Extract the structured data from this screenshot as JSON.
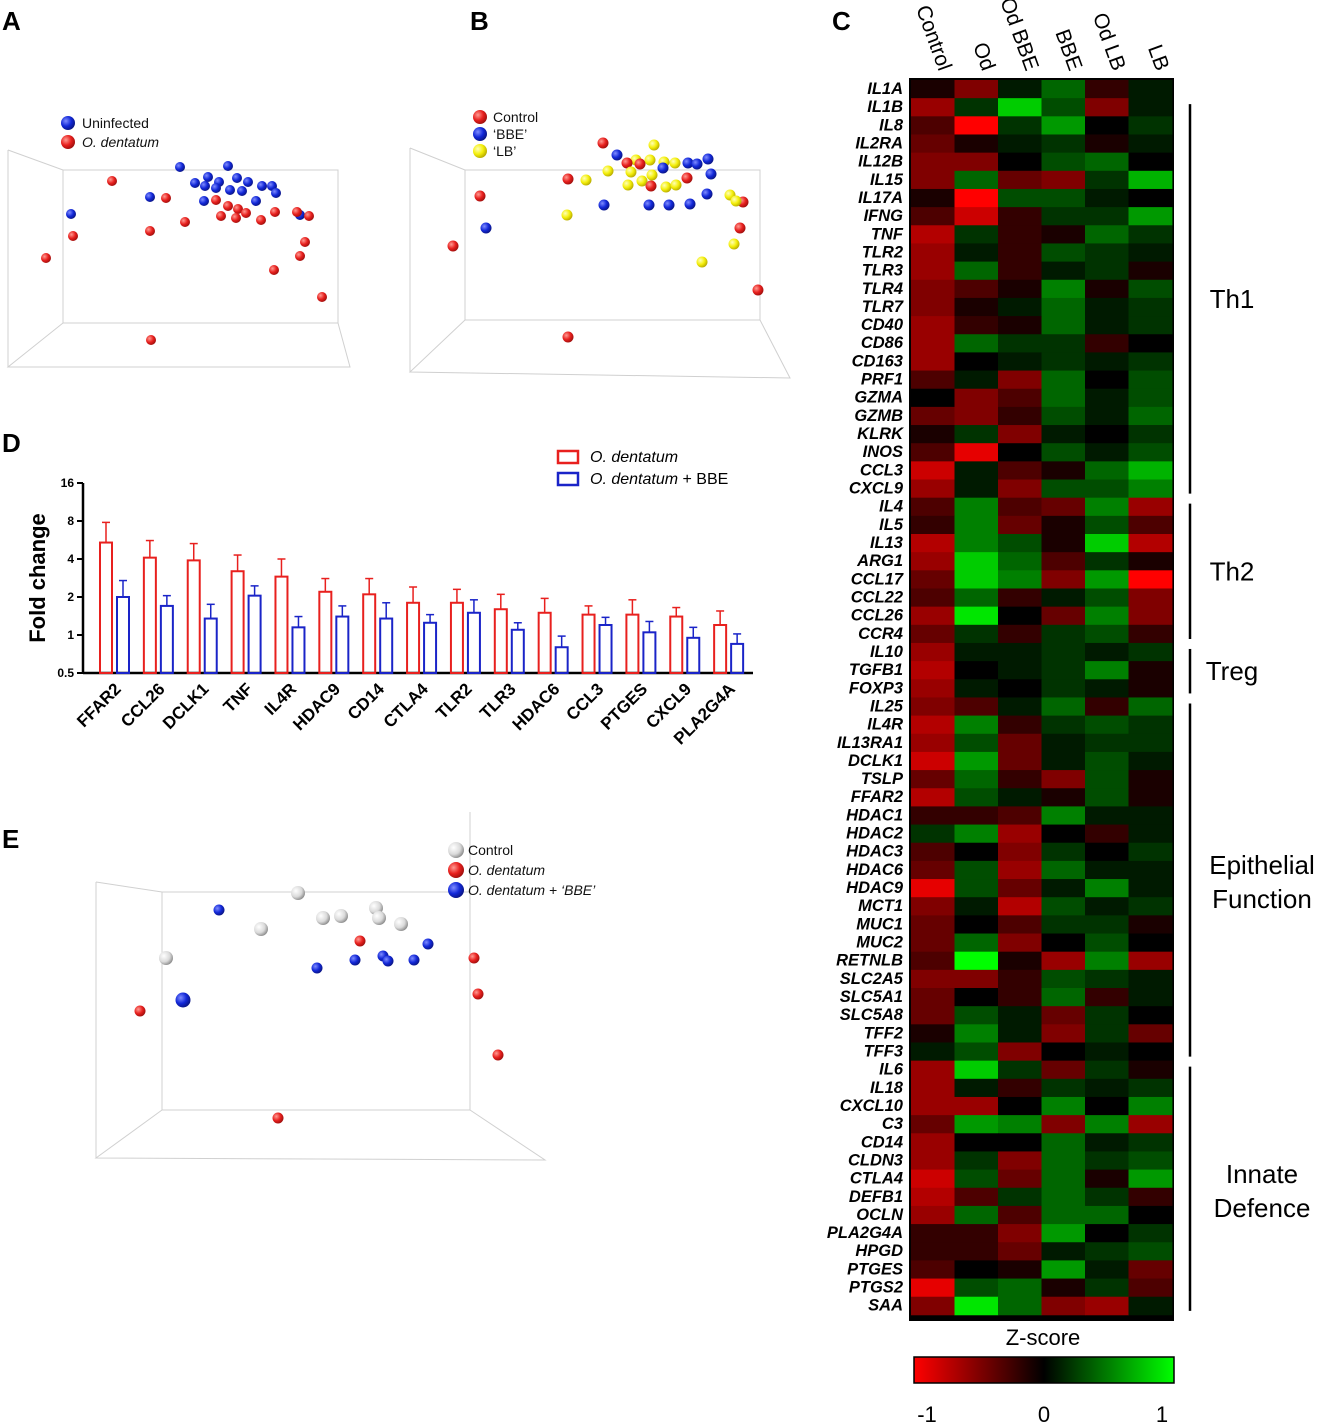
{
  "panels": {
    "a": "A",
    "b": "B",
    "c": "C",
    "d": "D",
    "e": "E"
  },
  "colors": {
    "red": "#e8201e",
    "blue": "#1228d8",
    "yellow": "#f4ef0a",
    "grey": "#d6d6d6",
    "barRed": "#e8201e",
    "barBlue": "#1a24c8"
  },
  "chart_data": [
    {
      "panel": "A",
      "type": "scatter",
      "title": "",
      "legend": [
        {
          "label": "Uninfected",
          "color": "#1228d8"
        },
        {
          "label": "O. dentatum",
          "color": "#e8201e"
        }
      ],
      "note": "3D PCA-style scatter; points plotted in a projected view with axes unlabeled"
    },
    {
      "panel": "B",
      "type": "scatter",
      "legend": [
        {
          "label": "Control",
          "color": "#e8201e"
        },
        {
          "label": "‘BBE’",
          "color": "#1228d8"
        },
        {
          "label": "‘LB’",
          "color": "#f4ef0a"
        }
      ]
    },
    {
      "panel": "C",
      "type": "heatmap",
      "columns": [
        "Control",
        "Od",
        "Od BBE",
        "BBE",
        "Od LB",
        "LB"
      ],
      "rows": [
        "IL1A",
        "IL1B",
        "IL8",
        "IL2RA",
        "IL12B",
        "IL15",
        "IL17A",
        "IFNG",
        "TNF",
        "TLR2",
        "TLR3",
        "TLR4",
        "TLR7",
        "CD40",
        "CD86",
        "CD163",
        "PRF1",
        "GZMA",
        "GZMB",
        "KLRK",
        "INOS",
        "CCL3",
        "CXCL9",
        "IL4",
        "IL5",
        "IL13",
        "ARG1",
        "CCL17",
        "CCL22",
        "CCL26",
        "CCR4",
        "IL10",
        "TGFB1",
        "FOXP3",
        "IL25",
        "IL4R",
        "IL13RA1",
        "DCLK1",
        "TSLP",
        "FFAR2",
        "HDAC1",
        "HDAC2",
        "HDAC3",
        "HDAC6",
        "HDAC9",
        "MCT1",
        "MUC1",
        "MUC2",
        "RETNLB",
        "SLC2A5",
        "SLC5A1",
        "SLC5A8",
        "TFF2",
        "TFF3",
        "IL6",
        "IL18",
        "CXCL10",
        "C3",
        "CD14",
        "CLDN3",
        "CTLA4",
        "DEFB1",
        "OCLN",
        "PLA2G4A",
        "HPGD",
        "PTGES",
        "PTGS2",
        "SAA"
      ],
      "groups": [
        {
          "label": "Th1",
          "from": "IL1B",
          "to": "CXCL9"
        },
        {
          "label": "Th2",
          "from": "IL4",
          "to": "CCR4"
        },
        {
          "label": "Treg",
          "from": "IL10",
          "to": "FOXP3"
        },
        {
          "label": "Epithelial",
          "label2": "Function",
          "from": "IL25",
          "to": "TFF3"
        },
        {
          "label": "Innate",
          "label2": "Defence",
          "from": "IL6",
          "to": "SAA"
        }
      ],
      "values": [
        [
          -0.1,
          -0.5,
          0.1,
          0.4,
          -0.2,
          0.1
        ],
        [
          -0.6,
          0.2,
          0.8,
          0.3,
          -0.5,
          0.1
        ],
        [
          -0.3,
          -1.0,
          0.2,
          0.6,
          0.0,
          0.2
        ],
        [
          -0.4,
          -0.1,
          0.1,
          0.2,
          -0.1,
          0.1
        ],
        [
          -0.5,
          -0.5,
          0.0,
          0.3,
          0.4,
          0.0
        ],
        [
          -0.5,
          0.4,
          -0.4,
          -0.5,
          0.2,
          0.7
        ],
        [
          -0.1,
          -1.0,
          0.3,
          0.3,
          0.1,
          0.0
        ],
        [
          -0.3,
          -0.8,
          -0.2,
          0.2,
          0.2,
          0.6
        ],
        [
          -0.7,
          0.2,
          -0.2,
          -0.1,
          0.4,
          0.2
        ],
        [
          -0.6,
          0.1,
          -0.2,
          0.3,
          0.2,
          0.1
        ],
        [
          -0.6,
          0.4,
          -0.2,
          0.1,
          0.2,
          -0.1
        ],
        [
          -0.5,
          -0.3,
          -0.1,
          0.5,
          -0.1,
          0.3
        ],
        [
          -0.5,
          -0.1,
          0.1,
          0.4,
          0.1,
          0.2
        ],
        [
          -0.6,
          -0.2,
          -0.1,
          0.4,
          0.1,
          0.2
        ],
        [
          -0.6,
          0.4,
          0.2,
          0.2,
          -0.2,
          0.0
        ],
        [
          -0.6,
          0.0,
          0.1,
          0.2,
          0.1,
          0.2
        ],
        [
          -0.3,
          0.1,
          -0.5,
          0.4,
          0.0,
          0.3
        ],
        [
          0.0,
          -0.5,
          -0.3,
          0.4,
          0.1,
          0.3
        ],
        [
          -0.4,
          -0.5,
          -0.2,
          0.3,
          0.1,
          0.4
        ],
        [
          -0.1,
          0.2,
          -0.5,
          0.1,
          0.0,
          0.2
        ],
        [
          -0.3,
          -0.9,
          0.0,
          0.3,
          0.1,
          0.3
        ],
        [
          -0.8,
          0.1,
          -0.3,
          -0.1,
          0.4,
          0.7
        ],
        [
          -0.6,
          0.1,
          -0.5,
          0.3,
          0.3,
          0.5
        ],
        [
          -0.3,
          0.5,
          -0.3,
          -0.4,
          0.5,
          -0.6
        ],
        [
          -0.2,
          0.5,
          -0.4,
          -0.1,
          0.3,
          -0.3
        ],
        [
          -0.7,
          0.5,
          0.3,
          -0.1,
          0.8,
          -0.7
        ],
        [
          -0.6,
          0.8,
          0.4,
          -0.3,
          0.2,
          -0.1
        ],
        [
          -0.4,
          0.8,
          0.5,
          -0.5,
          0.6,
          -1.0
        ],
        [
          -0.3,
          0.4,
          -0.2,
          0.1,
          0.3,
          -0.5
        ],
        [
          -0.6,
          0.9,
          0.0,
          -0.4,
          0.5,
          -0.5
        ],
        [
          -0.4,
          0.2,
          -0.2,
          0.2,
          0.3,
          -0.2
        ],
        [
          -0.6,
          0.1,
          0.1,
          0.2,
          0.1,
          0.2
        ],
        [
          -0.7,
          0.0,
          0.1,
          0.2,
          0.5,
          -0.1
        ],
        [
          -0.6,
          0.1,
          0.0,
          0.2,
          0.1,
          -0.1
        ],
        [
          -0.5,
          -0.3,
          0.1,
          0.4,
          -0.2,
          0.4
        ],
        [
          -0.7,
          0.5,
          -0.2,
          0.2,
          0.3,
          0.2
        ],
        [
          -0.6,
          0.3,
          -0.4,
          0.1,
          0.2,
          0.2
        ],
        [
          -0.8,
          0.6,
          -0.4,
          0.1,
          0.3,
          0.1
        ],
        [
          -0.4,
          0.4,
          -0.2,
          -0.5,
          0.3,
          -0.1
        ],
        [
          -0.7,
          0.3,
          0.1,
          -0.1,
          0.3,
          -0.1
        ],
        [
          -0.2,
          -0.2,
          -0.3,
          0.5,
          0.1,
          0.1
        ],
        [
          0.2,
          0.5,
          -0.6,
          0.0,
          -0.2,
          0.1
        ],
        [
          -0.3,
          0.0,
          -0.5,
          0.2,
          0.0,
          0.2
        ],
        [
          -0.4,
          0.3,
          -0.6,
          0.4,
          0.1,
          0.1
        ],
        [
          -0.9,
          0.3,
          -0.4,
          0.1,
          0.5,
          0.1
        ],
        [
          -0.5,
          0.1,
          -0.7,
          0.3,
          0.1,
          0.2
        ],
        [
          -0.4,
          0.0,
          -0.3,
          0.2,
          0.2,
          -0.1
        ],
        [
          -0.4,
          0.4,
          -0.5,
          0.0,
          0.3,
          0.0
        ],
        [
          -0.3,
          1.0,
          -0.1,
          -0.6,
          0.5,
          -0.6
        ],
        [
          -0.5,
          -0.5,
          -0.2,
          0.3,
          0.2,
          0.1
        ],
        [
          -0.4,
          0.0,
          -0.2,
          0.4,
          -0.2,
          0.1
        ],
        [
          -0.4,
          0.3,
          0.1,
          -0.4,
          0.2,
          0.0
        ],
        [
          -0.1,
          0.5,
          0.1,
          -0.5,
          0.2,
          -0.4
        ],
        [
          0.1,
          0.3,
          -0.5,
          0.0,
          0.1,
          0.0
        ],
        [
          -0.6,
          0.8,
          0.2,
          -0.4,
          0.2,
          -0.1
        ],
        [
          -0.6,
          0.1,
          -0.2,
          0.2,
          0.1,
          0.2
        ],
        [
          -0.6,
          -0.6,
          0.0,
          0.5,
          0.0,
          0.5
        ],
        [
          -0.4,
          0.6,
          0.5,
          -0.5,
          0.5,
          -0.6
        ],
        [
          -0.6,
          0.0,
          0.0,
          0.4,
          0.1,
          0.2
        ],
        [
          -0.6,
          0.2,
          -0.5,
          0.4,
          0.2,
          0.3
        ],
        [
          -0.8,
          0.3,
          -0.4,
          0.4,
          -0.1,
          0.6
        ],
        [
          -0.7,
          -0.3,
          0.2,
          0.4,
          0.2,
          -0.2
        ],
        [
          -0.6,
          0.4,
          -0.3,
          0.4,
          0.4,
          0.0
        ],
        [
          -0.2,
          -0.2,
          -0.5,
          0.6,
          0.0,
          0.2
        ],
        [
          -0.2,
          -0.2,
          -0.4,
          0.1,
          0.2,
          0.3
        ],
        [
          -0.3,
          0.0,
          -0.1,
          0.6,
          0.1,
          -0.4
        ],
        [
          -0.9,
          0.3,
          0.4,
          -0.1,
          0.2,
          -0.3
        ],
        [
          -0.5,
          0.9,
          0.4,
          -0.5,
          -0.6,
          0.1
        ]
      ],
      "colorbar": {
        "label": "Z-score",
        "min": "-1",
        "mid": "0",
        "max": "1"
      }
    },
    {
      "panel": "D",
      "type": "bar",
      "ylabel": "Fold change",
      "yscale": "log2",
      "ylim": [
        0.5,
        16
      ],
      "yticks": [
        "0.5",
        "1",
        "2",
        "4",
        "8",
        "16"
      ],
      "categories": [
        "FFAR2",
        "CCL26",
        "DCLK1",
        "TNF",
        "IL4R",
        "HDAC9",
        "CD14",
        "CTLA4",
        "TLR2",
        "TLR3",
        "HDAC6",
        "CCL3",
        "PTGES",
        "CXCL9",
        "PLA2G4A"
      ],
      "series": [
        {
          "name": "O. dentatum",
          "color": "#e8201e",
          "values": [
            5.4,
            4.1,
            3.9,
            3.2,
            2.9,
            2.2,
            2.1,
            1.8,
            1.8,
            1.6,
            1.5,
            1.45,
            1.45,
            1.4,
            1.2
          ],
          "errors": [
            7.8,
            5.6,
            5.3,
            4.3,
            4.0,
            2.8,
            2.8,
            2.4,
            2.3,
            2.1,
            1.95,
            1.7,
            1.9,
            1.65,
            1.55
          ]
        },
        {
          "name": "O. dentatum + BBE",
          "color": "#1a24c8",
          "values": [
            2.0,
            1.7,
            1.35,
            2.05,
            1.15,
            1.4,
            1.35,
            1.25,
            1.5,
            1.1,
            0.8,
            1.2,
            1.05,
            0.95,
            0.85
          ],
          "errors": [
            2.7,
            2.05,
            1.75,
            2.45,
            1.4,
            1.7,
            1.8,
            1.45,
            1.9,
            1.25,
            0.98,
            1.38,
            1.28,
            1.15,
            1.02
          ]
        }
      ],
      "legend": [
        {
          "prefix": "O. dentatum",
          "suffix": ""
        },
        {
          "prefix": "O. dentatum",
          "suffix": " + BBE"
        }
      ]
    },
    {
      "panel": "E",
      "type": "scatter",
      "legend": [
        {
          "label": "Control",
          "color": "#d6d6d6"
        },
        {
          "label": "O. dentatum",
          "color": "#e8201e"
        },
        {
          "label": "O. dentatum + ‘BBE’",
          "color": "#1228d8"
        }
      ]
    }
  ]
}
